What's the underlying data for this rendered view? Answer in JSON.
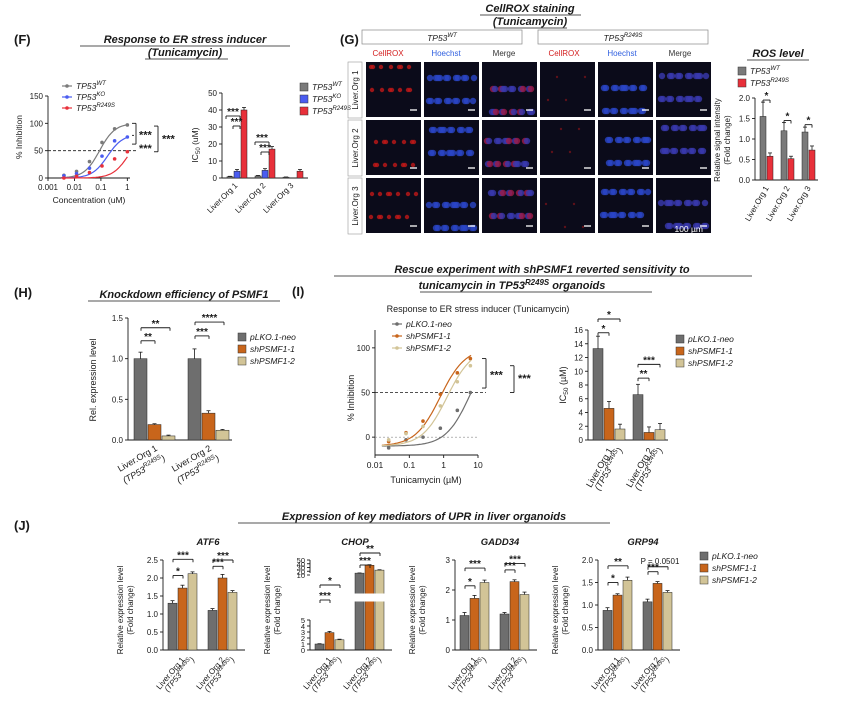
{
  "colors": {
    "wt": "#7a7a7a",
    "ko": "#4a5cf0",
    "r249s": "#e8303a",
    "neo": "#6e6e6e",
    "sh1": "#c8651b",
    "sh2": "#d2c497",
    "micro_bg": "#0b0b1a"
  },
  "panel_F": {
    "letter": "(F)",
    "title_line1": "Response to ER stress inducer",
    "title_line2": "(Tunicamycin)",
    "curve": {
      "ylabel": "% Inhibition",
      "xlabel": "Concentration (uM)",
      "yticks": [
        "0",
        "50",
        "100",
        "150"
      ],
      "xticks": [
        "0.001",
        "0.01",
        "0.1",
        "1"
      ],
      "legend": [
        {
          "base": "TP53",
          "sup": "WT"
        },
        {
          "base": "TP53",
          "sup": "KO"
        },
        {
          "base": "TP53",
          "sup": "R249S"
        }
      ],
      "sig1": "***",
      "sig2": "***",
      "sig3": "***"
    },
    "bars": {
      "ylabel": "IC",
      "ylabel_sub": "50",
      "ylabel_tail": " (uM)",
      "yticks": [
        "0",
        "10",
        "20",
        "30",
        "40",
        "50"
      ],
      "categories": [
        "Liver.Org 1",
        "Liver.Org 2",
        "Liver.Org 3"
      ],
      "legend": [
        {
          "base": "TP53",
          "sup": "WT"
        },
        {
          "base": "TP53",
          "sup": "KO"
        },
        {
          "base": "TP53",
          "sup": "R249S"
        }
      ],
      "sig": [
        "***",
        "***",
        "***",
        "***"
      ]
    }
  },
  "panel_G": {
    "letter": "(G)",
    "title_line1": "CellROX staining",
    "title_line2": "(Tunicamycin)",
    "group1": {
      "base": "TP53",
      "sup": "WT"
    },
    "group2": {
      "base": "TP53",
      "sup": "R249S"
    },
    "channels": [
      "CellROX",
      "Hoechst",
      "Merge"
    ],
    "rows": [
      "Liver.Org 1",
      "Liver.Org 2",
      "Liver.Org 3"
    ],
    "scale": "100 µm",
    "ros": {
      "title": "ROS level",
      "ylabel1": "Relative signal intensity",
      "ylabel2": "(Fold change)",
      "yticks": [
        "0.0",
        "0.5",
        "1.0",
        "1.5",
        "2.0"
      ],
      "categories": [
        "Liver.Org 1",
        "Liver.Org 2",
        "Liver.Org 3"
      ],
      "legend": [
        {
          "base": "TP53",
          "sup": "WT"
        },
        {
          "base": "TP53",
          "sup": "R249S"
        }
      ],
      "sig": [
        "*",
        "*",
        "*"
      ]
    }
  },
  "panel_H": {
    "letter": "(H)",
    "title": "Knockdown efficiency of PSMF1",
    "ylabel": "Rel. expression level",
    "yticks": [
      "0.0",
      "0.5",
      "1.0",
      "1.5"
    ],
    "categories": [
      {
        "line1": "Liver.Org 1",
        "line2": "(TP53",
        "sup": "R249S",
        "tail": ")"
      },
      {
        "line1": "Liver.Org 2",
        "line2": "(TP53",
        "sup": "R249S",
        "tail": ")"
      }
    ],
    "legend": [
      "pLKO.1-neo",
      "shPSMF1-1",
      "shPSMF1-2"
    ],
    "sig": [
      "**",
      "**",
      "***",
      "****"
    ]
  },
  "panel_I": {
    "letter": "(I)",
    "title_line1": "Rescue experiment with shPSMF1 reverted sensitivity to",
    "title_line2": "tunicamycin in TP53",
    "title_sup": "R249S",
    "title_tail": " organoids",
    "subtitle": "Response to ER stress inducer (Tunicamycin)",
    "curve": {
      "ylabel": "% Inhibition",
      "xlabel": "Tunicamycin (µM)",
      "yticks": [
        "0",
        "50",
        "100"
      ],
      "xticks": [
        "0.01",
        "0.1",
        "1",
        "10"
      ],
      "legend": [
        "pLKO.1-neo",
        "shPSMF1-1",
        "shPSMF1-2"
      ],
      "sig1": "***",
      "sig2": "***"
    },
    "bars": {
      "ylabel": "IC",
      "ylabel_sub": "50",
      "ylabel_tail": " (µM)",
      "yticks": [
        "0",
        "2",
        "4",
        "6",
        "8",
        "10",
        "12",
        "14",
        "16"
      ],
      "categories": [
        {
          "line1": "Liver.Org 1",
          "line2": "(TP53",
          "sup": "R249S",
          "tail": ")"
        },
        {
          "line1": "Liver.Org 2",
          "line2": "(TP53",
          "sup": "R249S",
          "tail": ")"
        }
      ],
      "legend": [
        "pLKO.1-neo",
        "shPSMF1-1",
        "shPSMF1-2"
      ],
      "sig": [
        "*",
        "*",
        "**",
        "***"
      ]
    }
  },
  "panel_J": {
    "letter": "(J)",
    "title": "Expression of key mediators of UPR in liver organoids",
    "ylabel1": "Relative expression level",
    "ylabel2": "(Fold change)",
    "legend": [
      "pLKO.1-neo",
      "shPSMF1-1",
      "shPSMF1-2"
    ],
    "categories": [
      {
        "line1": "Liver.Org 1",
        "line2": "(TP53",
        "sup": "R249S",
        "tail": ")"
      },
      {
        "line1": "Liver.Org 2",
        "line2": "(TP53",
        "sup": "R249S",
        "tail": ")"
      }
    ],
    "genes": [
      {
        "name": "ATF6",
        "yticks": [
          "0.0",
          "0.5",
          "1.0",
          "1.5",
          "2.0",
          "2.5"
        ],
        "sig": [
          "*",
          "***",
          "***",
          "***"
        ]
      },
      {
        "name": "CHOP",
        "yticks": [
          "0",
          "1",
          "2",
          "3",
          "4",
          "5",
          "10",
          "20",
          "30",
          "40",
          "50"
        ],
        "sig": [
          "*",
          "***",
          "***",
          "**"
        ]
      },
      {
        "name": "GADD34",
        "yticks": [
          "0",
          "1",
          "2",
          "3"
        ],
        "sig": [
          "*",
          "***",
          "***",
          "***"
        ]
      },
      {
        "name": "GRP94",
        "yticks": [
          "0.0",
          "0.5",
          "1.0",
          "1.5",
          "2.0"
        ],
        "sig": [
          "*",
          "**",
          "***"
        ],
        "pval": "P = 0.0501"
      }
    ]
  },
  "chart_data": [
    {
      "type": "line",
      "panel": "F-curve",
      "xscale": "log",
      "xlabel": "Concentration (uM)",
      "ylabel": "% Inhibition",
      "ylim": [
        0,
        150
      ],
      "series": [
        {
          "name": "TP53 WT",
          "x": [
            0.004,
            0.012,
            0.037,
            0.11,
            0.33,
            1
          ],
          "y": [
            5,
            12,
            30,
            65,
            90,
            97
          ]
        },
        {
          "name": "TP53 KO",
          "x": [
            0.004,
            0.012,
            0.037,
            0.11,
            0.33,
            1
          ],
          "y": [
            4,
            8,
            18,
            40,
            68,
            75
          ]
        },
        {
          "name": "TP53 R249S",
          "x": [
            0.004,
            0.012,
            0.037,
            0.11,
            0.33,
            1
          ],
          "y": [
            -2,
            3,
            10,
            22,
            35,
            48
          ]
        }
      ]
    },
    {
      "type": "bar",
      "panel": "F-bars",
      "ylabel": "IC50 (uM)",
      "ylim": [
        0,
        50
      ],
      "categories": [
        "Liver.Org 1",
        "Liver.Org 2",
        "Liver.Org 3"
      ],
      "series": [
        {
          "name": "TP53 WT",
          "values": [
            0.8,
            1.2,
            0.5
          ],
          "err": [
            0.2,
            0.3,
            0.1
          ]
        },
        {
          "name": "TP53 KO",
          "values": [
            4,
            4.5,
            null
          ],
          "err": [
            1,
            1,
            0
          ]
        },
        {
          "name": "TP53 R249S",
          "values": [
            40,
            17,
            4
          ],
          "err": [
            1.5,
            1.5,
            1
          ]
        }
      ]
    },
    {
      "type": "bar",
      "panel": "G-ros",
      "ylabel": "Relative signal intensity (Fold change)",
      "ylim": [
        0,
        2
      ],
      "categories": [
        "Liver.Org 1",
        "Liver.Org 2",
        "Liver.Org 3"
      ],
      "series": [
        {
          "name": "TP53 WT",
          "values": [
            1.55,
            1.2,
            1.17
          ],
          "err": [
            0.35,
            0.2,
            0.12
          ]
        },
        {
          "name": "TP53 R249S",
          "values": [
            0.58,
            0.52,
            0.73
          ],
          "err": [
            0.08,
            0.06,
            0.1
          ]
        }
      ]
    },
    {
      "type": "bar",
      "panel": "H",
      "ylabel": "Rel. expression level",
      "ylim": [
        0,
        1.5
      ],
      "categories": [
        "Liver.Org 1 (TP53 R249S)",
        "Liver.Org 2 (TP53 R249S)"
      ],
      "series": [
        {
          "name": "pLKO.1-neo",
          "values": [
            1.0,
            1.0
          ],
          "err": [
            0.08,
            0.12
          ]
        },
        {
          "name": "shPSMF1-1",
          "values": [
            0.19,
            0.33
          ],
          "err": [
            0.01,
            0.03
          ]
        },
        {
          "name": "shPSMF1-2",
          "values": [
            0.05,
            0.12
          ],
          "err": [
            0.01,
            0.01
          ]
        }
      ]
    },
    {
      "type": "line",
      "panel": "I-curve",
      "xscale": "log",
      "xlabel": "Tunicamycin (µM)",
      "ylabel": "% Inhibition",
      "ylim": [
        -20,
        120
      ],
      "series": [
        {
          "name": "pLKO.1-neo",
          "x": [
            0.025,
            0.08,
            0.25,
            0.8,
            2.5,
            6
          ],
          "y": [
            -12,
            -3,
            0,
            10,
            30,
            50
          ]
        },
        {
          "name": "shPSMF1-1",
          "x": [
            0.025,
            0.08,
            0.25,
            0.8,
            2.5,
            6
          ],
          "y": [
            -5,
            5,
            18,
            48,
            72,
            88
          ]
        },
        {
          "name": "shPSMF1-2",
          "x": [
            0.025,
            0.08,
            0.25,
            0.8,
            2.5,
            6
          ],
          "y": [
            -3,
            4,
            12,
            35,
            62,
            80
          ]
        }
      ]
    },
    {
      "type": "bar",
      "panel": "I-bars",
      "ylabel": "IC50 (µM)",
      "ylim": [
        0,
        16
      ],
      "categories": [
        "Liver.Org 1 (TP53 R249S)",
        "Liver.Org 2 (TP53 R249S)"
      ],
      "series": [
        {
          "name": "pLKO.1-neo",
          "values": [
            13.3,
            6.6
          ],
          "err": [
            1.8,
            1.5
          ]
        },
        {
          "name": "shPSMF1-1",
          "values": [
            4.6,
            1.1
          ],
          "err": [
            1.0,
            0.8
          ]
        },
        {
          "name": "shPSMF1-2",
          "values": [
            1.6,
            1.5
          ],
          "err": [
            0.7,
            0.9
          ]
        }
      ]
    },
    {
      "type": "bar",
      "panel": "J-ATF6",
      "ylabel": "Relative expression level (Fold change)",
      "ylim": [
        0,
        2.5
      ],
      "categories": [
        "Liver.Org 1",
        "Liver.Org 2"
      ],
      "series": [
        {
          "name": "pLKO.1-neo",
          "values": [
            1.3,
            1.1
          ],
          "err": [
            0.07,
            0.05
          ]
        },
        {
          "name": "shPSMF1-1",
          "values": [
            1.72,
            2.0
          ],
          "err": [
            0.08,
            0.1
          ]
        },
        {
          "name": "shPSMF1-2",
          "values": [
            2.12,
            1.6
          ],
          "err": [
            0.05,
            0.05
          ]
        }
      ]
    },
    {
      "type": "bar",
      "panel": "J-CHOP",
      "ylabel": "Relative expression level (Fold change)",
      "broken_axis": true,
      "categories": [
        "Liver.Org 1",
        "Liver.Org 2"
      ],
      "series": [
        {
          "name": "pLKO.1-neo",
          "values": [
            1.0,
            15
          ],
          "err": [
            0.05,
            0.5
          ]
        },
        {
          "name": "shPSMF1-1",
          "values": [
            2.9,
            36
          ],
          "err": [
            0.2,
            1.5
          ]
        },
        {
          "name": "shPSMF1-2",
          "values": [
            1.7,
            23
          ],
          "err": [
            0.1,
            1
          ]
        }
      ]
    },
    {
      "type": "bar",
      "panel": "J-GADD34",
      "ylabel": "Relative expression level (Fold change)",
      "ylim": [
        0,
        3
      ],
      "categories": [
        "Liver.Org 1",
        "Liver.Org 2"
      ],
      "series": [
        {
          "name": "pLKO.1-neo",
          "values": [
            1.15,
            1.2
          ],
          "err": [
            0.1,
            0.05
          ]
        },
        {
          "name": "shPSMF1-1",
          "values": [
            1.72,
            2.28
          ],
          "err": [
            0.1,
            0.06
          ]
        },
        {
          "name": "shPSMF1-2",
          "values": [
            2.25,
            1.85
          ],
          "err": [
            0.08,
            0.08
          ]
        }
      ]
    },
    {
      "type": "bar",
      "panel": "J-GRP94",
      "ylabel": "Relative expression level (Fold change)",
      "ylim": [
        0,
        2
      ],
      "categories": [
        "Liver.Org 1",
        "Liver.Org 2"
      ],
      "series": [
        {
          "name": "pLKO.1-neo",
          "values": [
            0.88,
            1.07
          ],
          "err": [
            0.06,
            0.06
          ]
        },
        {
          "name": "shPSMF1-1",
          "values": [
            1.22,
            1.48
          ],
          "err": [
            0.03,
            0.04
          ]
        },
        {
          "name": "shPSMF1-2",
          "values": [
            1.55,
            1.28
          ],
          "err": [
            0.07,
            0.04
          ]
        }
      ]
    }
  ]
}
